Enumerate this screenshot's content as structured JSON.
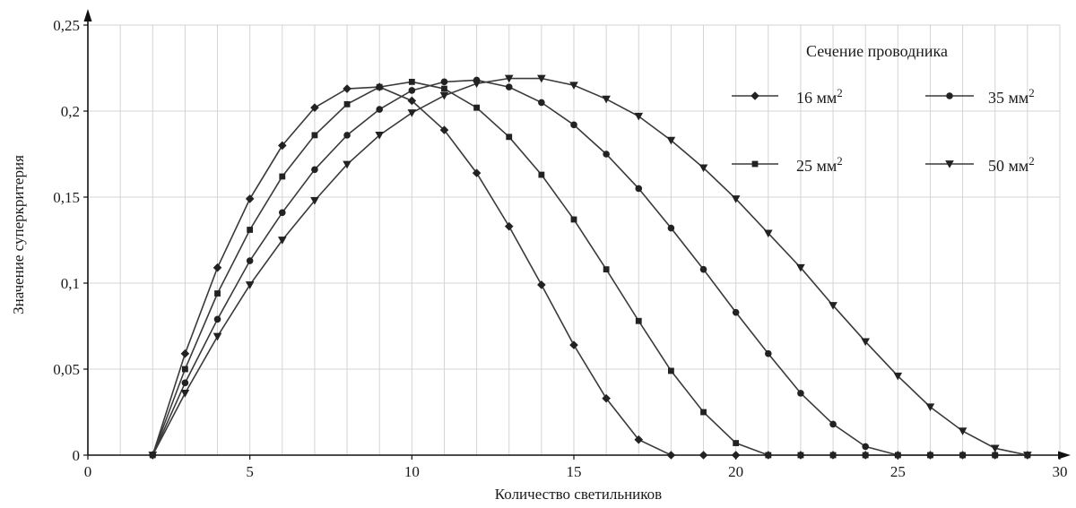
{
  "chart_data": {
    "type": "line",
    "title": "",
    "xlabel": "Количество светильников",
    "ylabel": "Значение суперкритерия",
    "xlim": [
      0,
      30
    ],
    "ylim": [
      0,
      0.25
    ],
    "x_ticks": [
      0,
      5,
      10,
      15,
      20,
      25,
      30
    ],
    "x_tick_labels": [
      "0",
      "5",
      "10",
      "15",
      "20",
      "25",
      "30"
    ],
    "y_ticks": [
      0,
      0.05,
      0.1,
      0.15,
      0.2,
      0.25
    ],
    "y_tick_labels": [
      "0",
      "0,05",
      "0,1",
      "0,15",
      "0,2",
      "0,25"
    ],
    "grid": "vertical every 1 unit, horizontal at y ticks",
    "legend": {
      "title": "Сечение проводника",
      "placement": "top-right"
    },
    "series": [
      {
        "name": "16 мм²",
        "label_text": "16 мм",
        "label_sup": "2",
        "marker": "diamond",
        "x": [
          2,
          3,
          4,
          5,
          6,
          7,
          8,
          9,
          10,
          11,
          12,
          13,
          14,
          15,
          16,
          17,
          18,
          19,
          20,
          21,
          22,
          23,
          24,
          25,
          26,
          27,
          28,
          29
        ],
        "y": [
          0,
          0.059,
          0.109,
          0.149,
          0.18,
          0.202,
          0.213,
          0.214,
          0.206,
          0.189,
          0.164,
          0.133,
          0.099,
          0.064,
          0.033,
          0.009,
          0,
          0,
          0,
          0,
          0,
          0,
          0,
          0,
          0,
          0,
          0,
          0
        ]
      },
      {
        "name": "25 мм²",
        "label_text": "25 мм",
        "label_sup": "2",
        "marker": "square",
        "x": [
          2,
          3,
          4,
          5,
          6,
          7,
          8,
          9,
          10,
          11,
          12,
          13,
          14,
          15,
          16,
          17,
          18,
          19,
          20,
          21,
          22,
          23,
          24,
          25,
          26,
          27,
          28,
          29
        ],
        "y": [
          0,
          0.05,
          0.094,
          0.131,
          0.162,
          0.186,
          0.204,
          0.214,
          0.217,
          0.213,
          0.202,
          0.185,
          0.163,
          0.137,
          0.108,
          0.078,
          0.049,
          0.025,
          0.007,
          0,
          0,
          0,
          0,
          0,
          0,
          0,
          0,
          0
        ]
      },
      {
        "name": "35 мм²",
        "label_text": "35 мм",
        "label_sup": "2",
        "marker": "circle",
        "x": [
          2,
          3,
          4,
          5,
          6,
          7,
          8,
          9,
          10,
          11,
          12,
          13,
          14,
          15,
          16,
          17,
          18,
          19,
          20,
          21,
          22,
          23,
          24,
          25,
          26,
          27,
          28,
          29
        ],
        "y": [
          0,
          0.042,
          0.079,
          0.113,
          0.141,
          0.166,
          0.186,
          0.201,
          0.212,
          0.217,
          0.218,
          0.214,
          0.205,
          0.192,
          0.175,
          0.155,
          0.132,
          0.108,
          0.083,
          0.059,
          0.036,
          0.018,
          0.005,
          0,
          0,
          0,
          0,
          0
        ]
      },
      {
        "name": "50 мм²",
        "label_text": "50 мм",
        "label_sup": "2",
        "marker": "triangle-down",
        "x": [
          2,
          3,
          4,
          5,
          6,
          7,
          8,
          9,
          10,
          11,
          12,
          13,
          14,
          15,
          16,
          17,
          18,
          19,
          20,
          21,
          22,
          23,
          24,
          25,
          26,
          27,
          28,
          29
        ],
        "y": [
          0,
          0.036,
          0.069,
          0.099,
          0.125,
          0.148,
          0.169,
          0.186,
          0.199,
          0.209,
          0.216,
          0.219,
          0.219,
          0.215,
          0.207,
          0.197,
          0.183,
          0.167,
          0.149,
          0.129,
          0.109,
          0.087,
          0.066,
          0.046,
          0.028,
          0.014,
          0.004,
          0
        ]
      }
    ]
  }
}
